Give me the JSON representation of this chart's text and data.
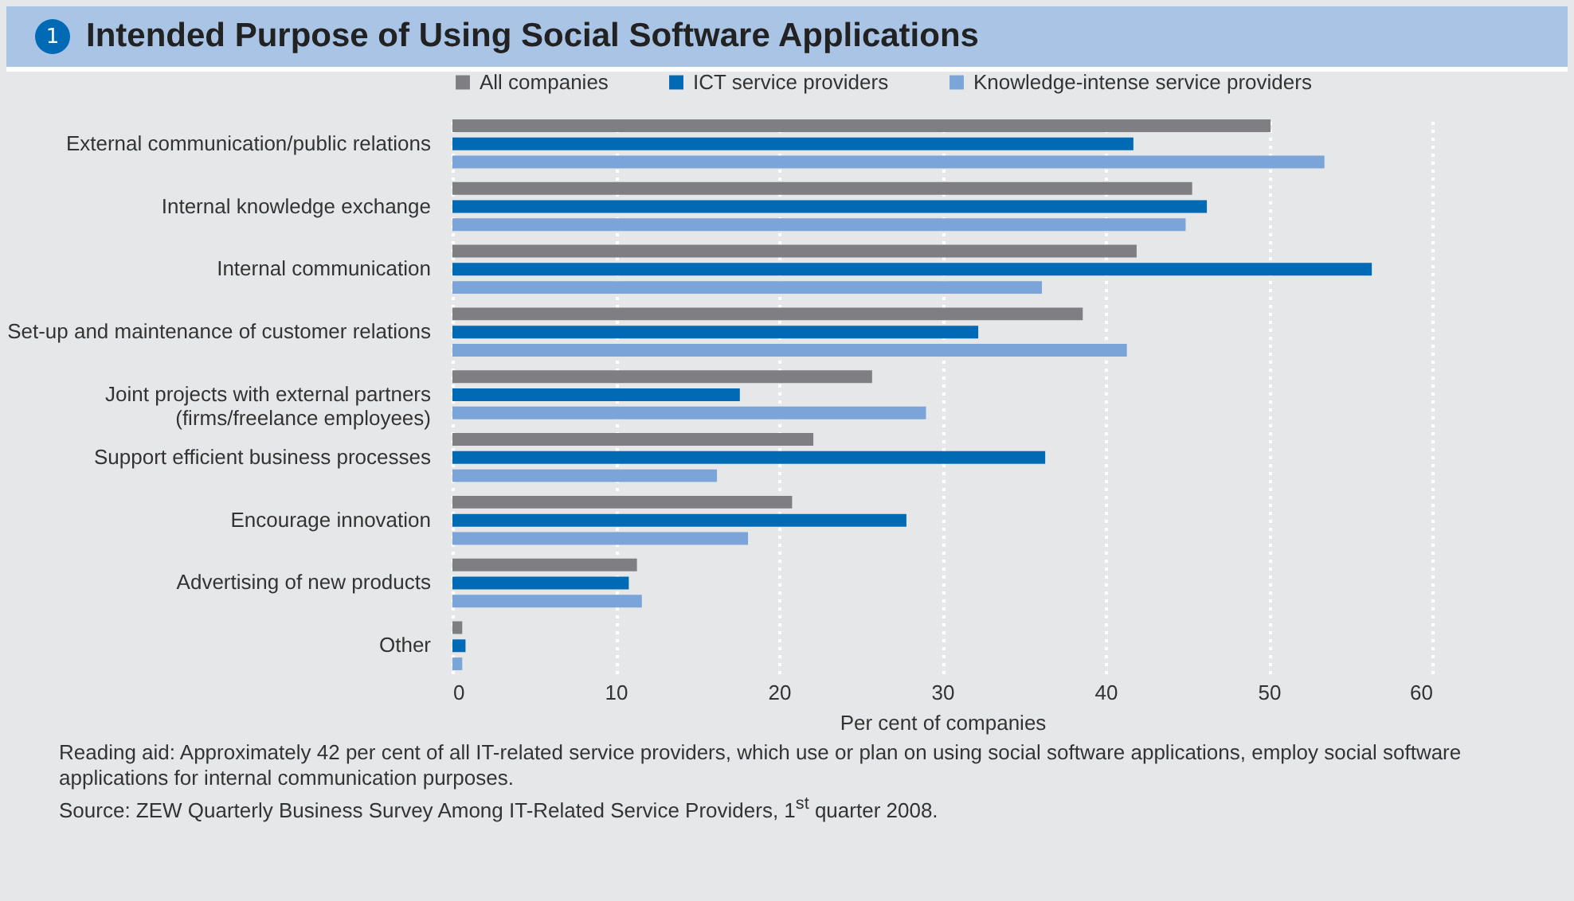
{
  "chart_data": {
    "type": "bar",
    "orientation": "horizontal",
    "title": "Intended Purpose of Using Social Software Applications",
    "categories": [
      "External communication/public relations",
      "Internal knowledge exchange",
      "Internal communication",
      "Set-up and maintenance of customer relations",
      "Joint projects with external partners (firms/freelance employees)",
      "Support efficient business processes",
      "Encourage innovation",
      "Advertising of new products",
      "Other"
    ],
    "series": [
      {
        "name": "All companies",
        "color": "#7f7f83",
        "values": [
          50.1,
          45.3,
          41.9,
          38.6,
          25.7,
          22.1,
          20.8,
          11.3,
          0.6
        ]
      },
      {
        "name": "ICT service providers",
        "color": "#006ab5",
        "values": [
          41.7,
          46.2,
          56.3,
          32.2,
          17.6,
          36.3,
          27.8,
          10.8,
          0.8
        ]
      },
      {
        "name": "Knowledge-intense service providers",
        "color": "#7ba5d8",
        "values": [
          53.4,
          44.9,
          36.1,
          41.3,
          29.0,
          16.2,
          18.1,
          11.6,
          0.6
        ]
      }
    ],
    "xlabel": "Per cent of companies",
    "xlim": [
      0,
      60
    ],
    "xticks": [
      0,
      10,
      20,
      30,
      40,
      50,
      60
    ],
    "grid": "x",
    "legend": "top",
    "annotations": [
      "1",
      "Reading aid: Approximately 42 per cent of all IT-related service providers, which use or plan on using social software applications, employ social software applications for internal communication purposes.",
      "Source: ZEW Quarterly Business Survey Among IT-Related Service Providers, 1$^{st}$ quarter 2008."
    ]
  }
}
